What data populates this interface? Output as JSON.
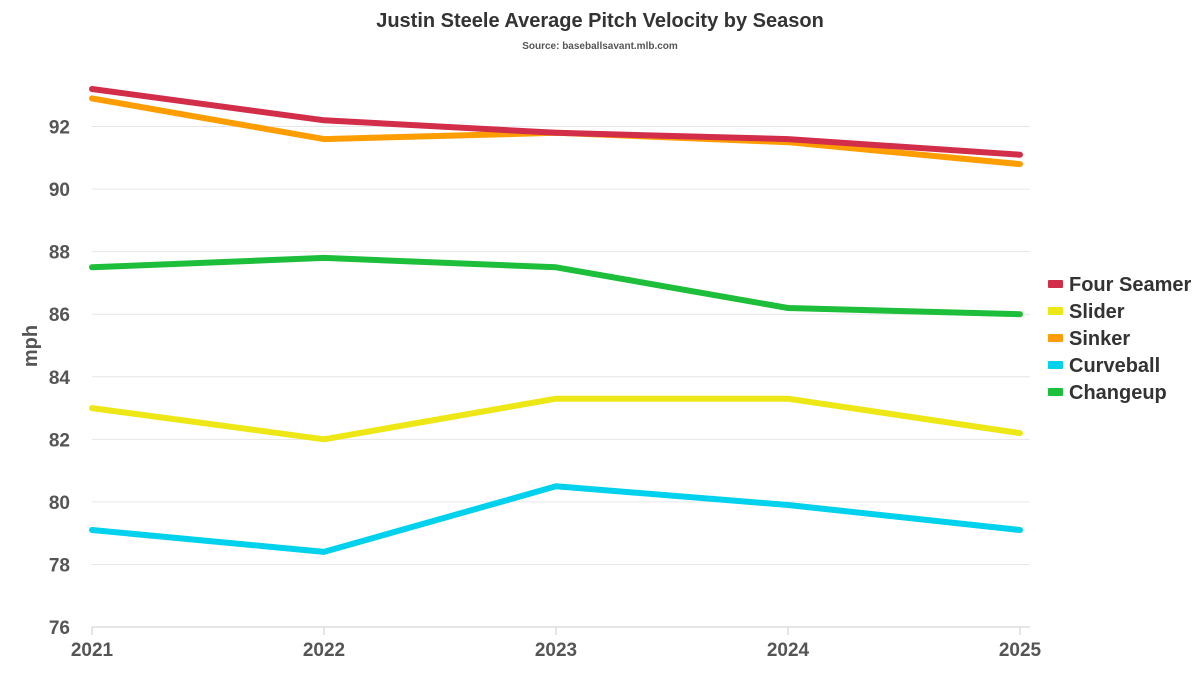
{
  "colors": {
    "Four Seamer": "#d22d49",
    "Slider": "#eee716",
    "Sinker": "#fe9d00",
    "Curveball": "#00d1ed",
    "Changeup": "#1dbe3a"
  },
  "chart_data": {
    "type": "line",
    "title": "Justin Steele Average Pitch Velocity by Season",
    "subtitle": "Source: baseballsavant.mlb.com",
    "xlabel": "",
    "ylabel": "mph",
    "x": [
      "2021",
      "2022",
      "2023",
      "2024",
      "2025"
    ],
    "ylim": [
      76,
      94
    ],
    "yticks": [
      76,
      78,
      80,
      82,
      84,
      86,
      88,
      90,
      92
    ],
    "grid": true,
    "legend_position": "right",
    "series": [
      {
        "name": "Four Seamer",
        "values": [
          93.2,
          92.2,
          91.8,
          91.6,
          91.1
        ]
      },
      {
        "name": "Slider",
        "values": [
          83.0,
          82.0,
          83.3,
          83.3,
          82.2
        ]
      },
      {
        "name": "Sinker",
        "values": [
          92.9,
          91.6,
          91.8,
          91.5,
          90.8
        ]
      },
      {
        "name": "Curveball",
        "values": [
          79.1,
          78.4,
          80.5,
          79.9,
          79.1
        ]
      },
      {
        "name": "Changeup",
        "values": [
          87.5,
          87.8,
          87.5,
          86.2,
          86.0
        ]
      }
    ]
  }
}
